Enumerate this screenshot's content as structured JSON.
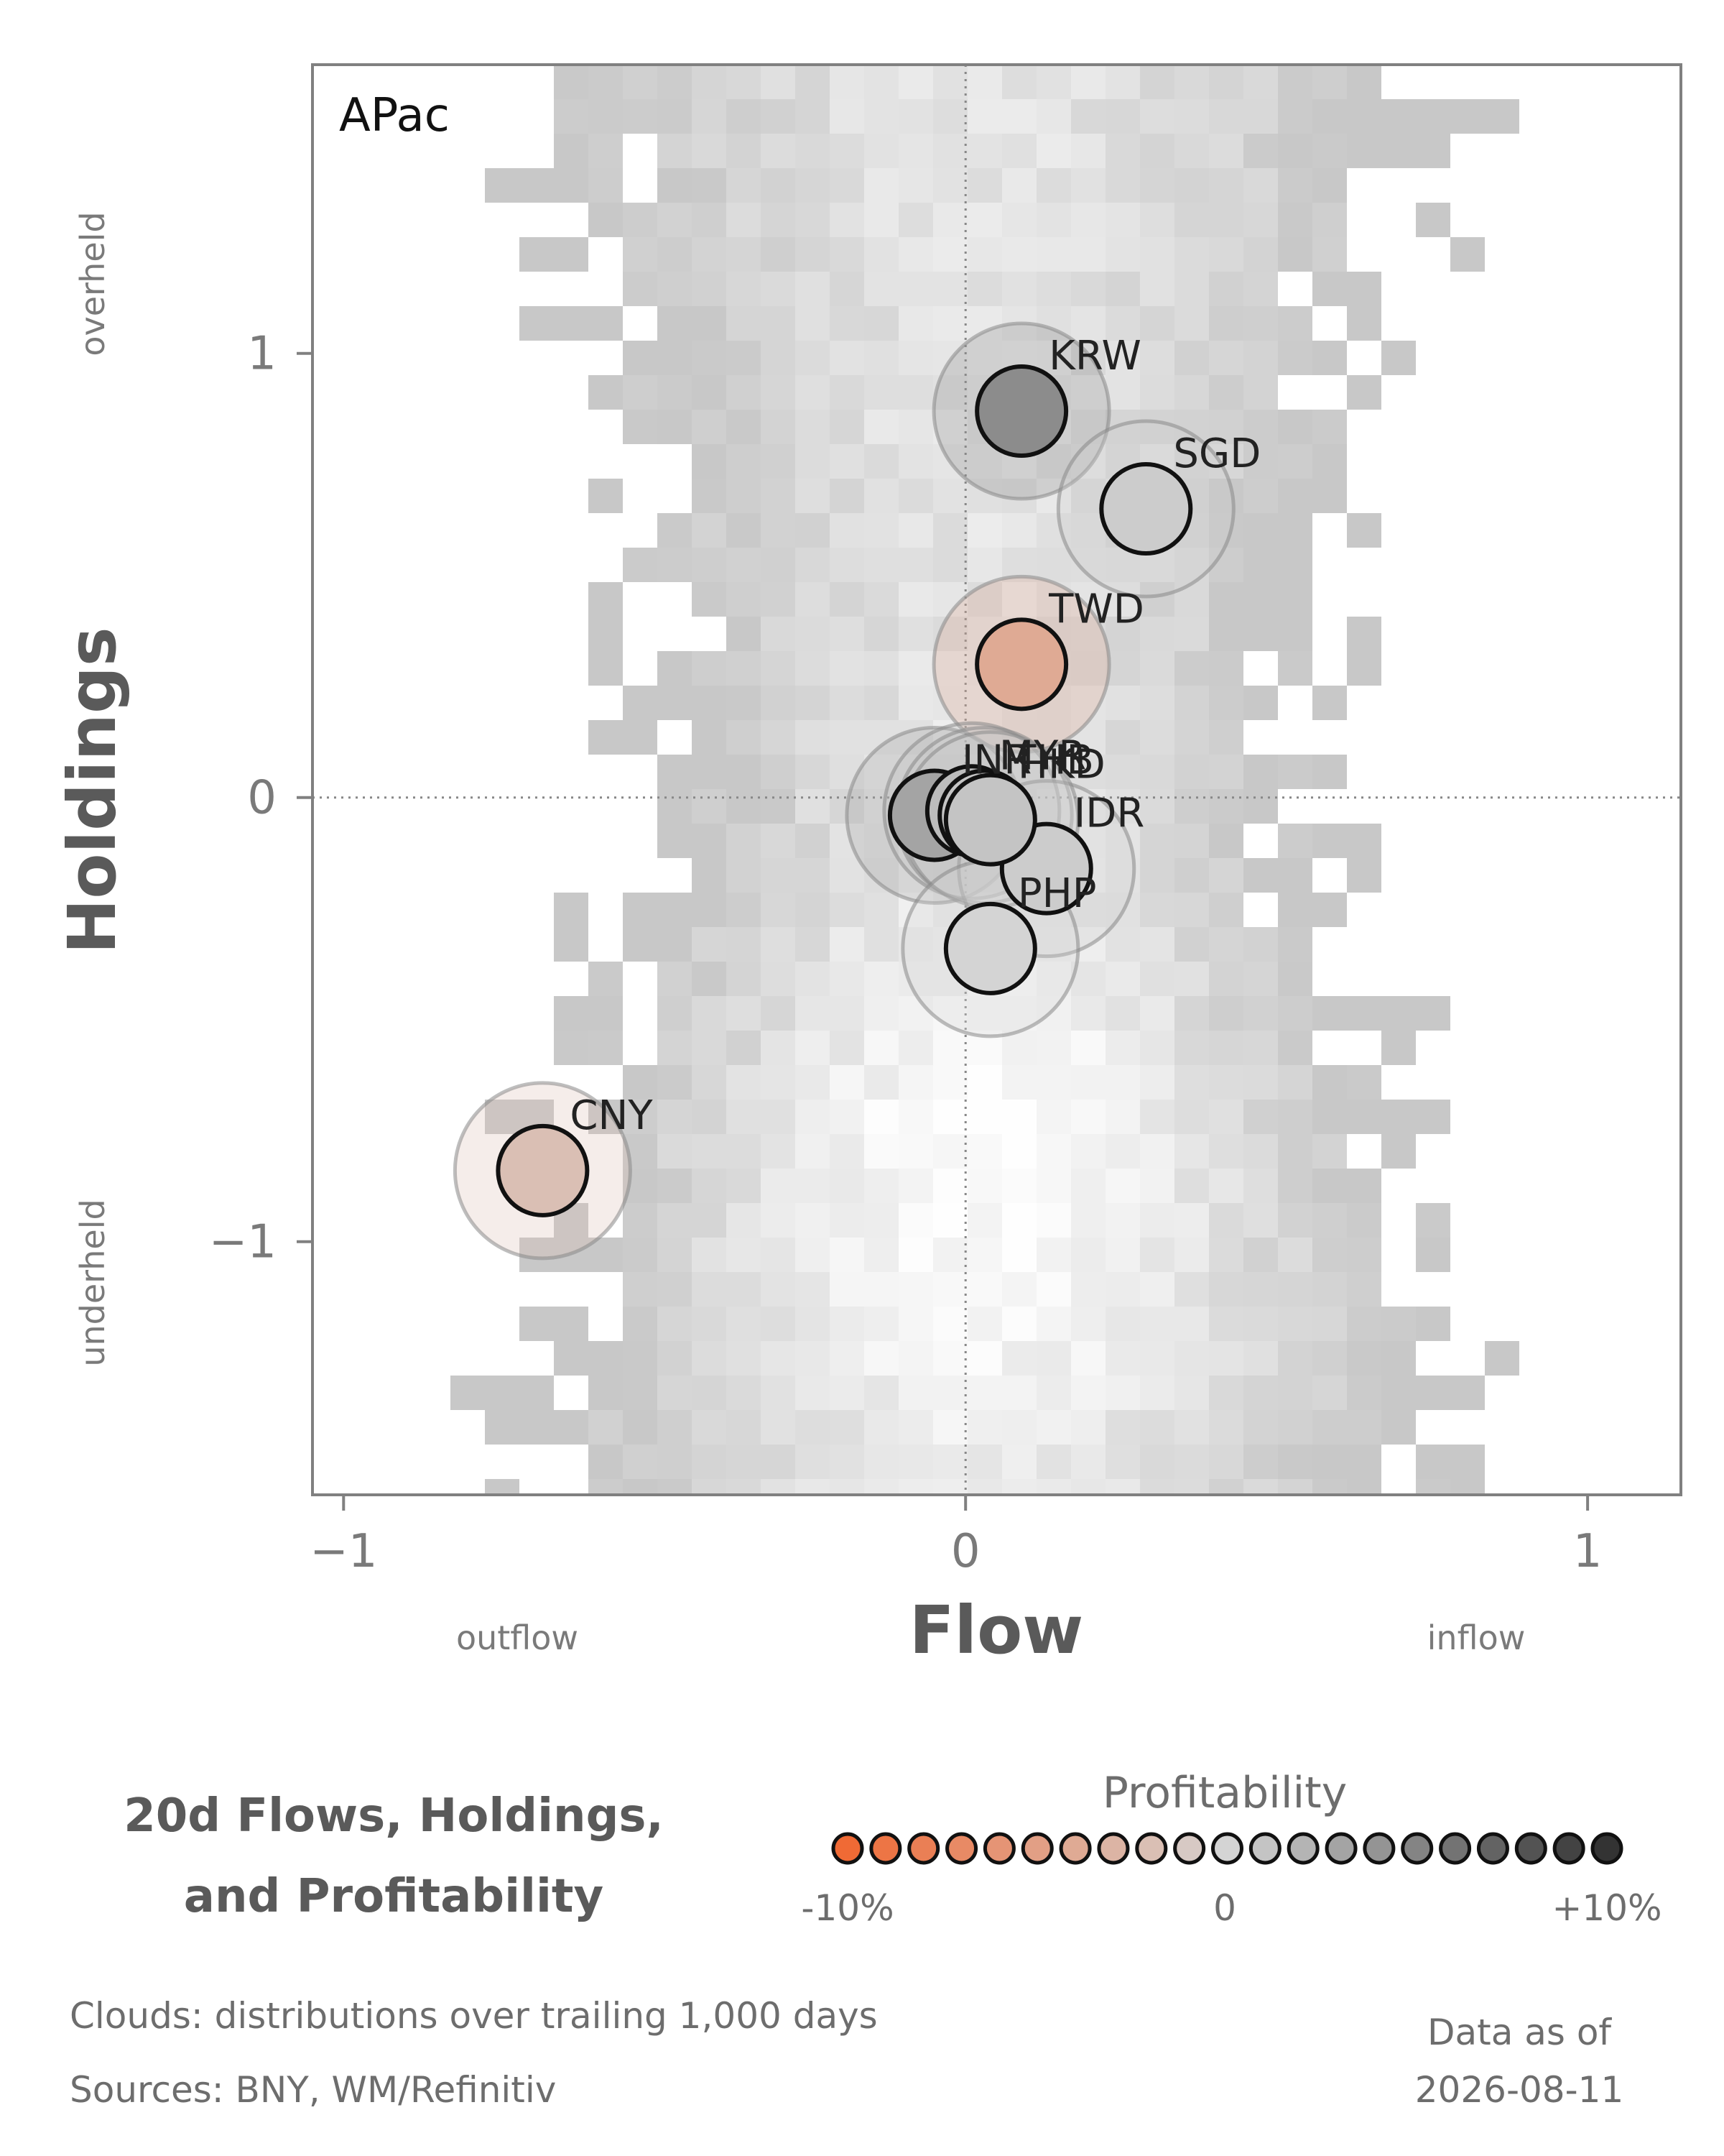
{
  "chart_data": {
    "type": "scatter",
    "panel_label": "APac",
    "xlabel": "Flow",
    "ylabel": "Holdings",
    "x_left_label": "outflow",
    "x_right_label": "inflow",
    "y_top_label": "overheld",
    "y_bottom_label": "underheld",
    "xlim": [
      -1.05,
      1.15
    ],
    "ylim": [
      -1.57,
      1.65
    ],
    "xticks": [
      {
        "value": -1,
        "label": "−1"
      },
      {
        "value": 0,
        "label": "0"
      },
      {
        "value": 1,
        "label": "1"
      }
    ],
    "yticks": [
      {
        "value": 1,
        "label": "1"
      },
      {
        "value": 0,
        "label": "0"
      },
      {
        "value": -1,
        "label": "−1"
      }
    ],
    "reference_lines": {
      "x": 0,
      "y": 0
    },
    "background": "grey density cloud of trailing distributions",
    "points": [
      {
        "label": "KRW",
        "x": 0.09,
        "y": 0.87,
        "profitability": 0.045
      },
      {
        "label": "SGD",
        "x": 0.29,
        "y": 0.65,
        "profitability": 0.005
      },
      {
        "label": "TWD",
        "x": 0.09,
        "y": 0.3,
        "profitability": -0.04
      },
      {
        "label": "INR",
        "x": -0.05,
        "y": -0.04,
        "profitability": 0.03
      },
      {
        "label": "MYR",
        "x": 0.01,
        "y": -0.03,
        "profitability": 0.015
      },
      {
        "label": "THB",
        "x": 0.03,
        "y": -0.04,
        "profitability": 0.01
      },
      {
        "label": "IDR",
        "x": 0.13,
        "y": -0.16,
        "profitability": 0.005
      },
      {
        "label": "HKD",
        "x": 0.04,
        "y": -0.05,
        "profitability": 0.01
      },
      {
        "label": "PHP",
        "x": 0.04,
        "y": -0.34,
        "profitability": 0.0
      },
      {
        "label": "CNY",
        "x": -0.68,
        "y": -0.84,
        "profitability": -0.02
      }
    ]
  },
  "legend": {
    "title": "Profitability",
    "min_label": "-10%",
    "mid_label": "0",
    "max_label": "+10%",
    "steps": 21,
    "low_color": "#f06a35",
    "mid_color": "#d4d4d4",
    "high_color": "#333333"
  },
  "caption": {
    "line1": "20d Flows, Holdings,",
    "line2": "and Profitability"
  },
  "footer": {
    "clouds": "Clouds:  distributions over trailing 1,000 days",
    "sources": "Sources:  BNY, WM/Refinitiv",
    "data_as_of_label": "Data as of",
    "data_as_of_date": "2026-08-11"
  }
}
